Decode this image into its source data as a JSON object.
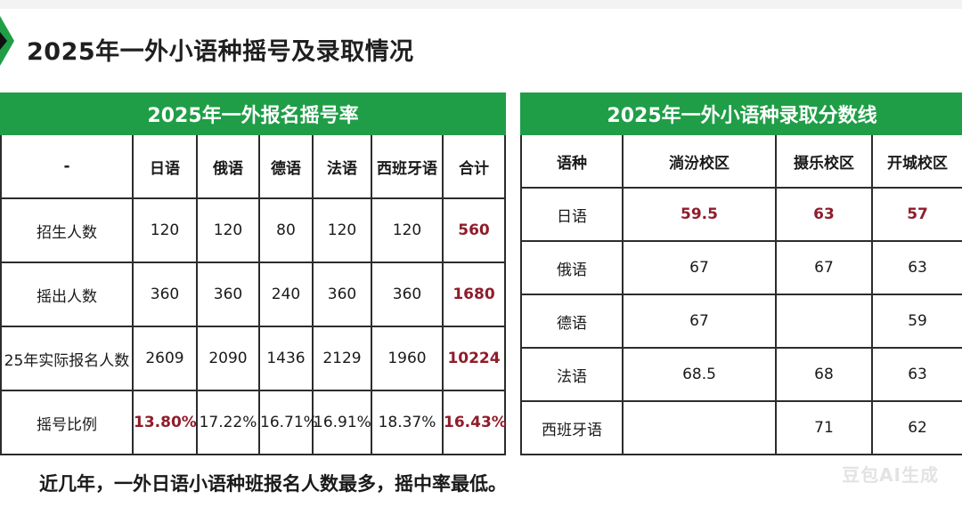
{
  "title": "2025年一外小语种摇号及录取情况",
  "lottery_table": {
    "caption": "2025年一外报名摇号率",
    "columns": [
      "-",
      "日语",
      "俄语",
      "德语",
      "法语",
      "西班牙语",
      "合计"
    ],
    "rows": [
      {
        "label": "招生人数",
        "cells": [
          "120",
          "120",
          "80",
          "120",
          "120",
          "560"
        ]
      },
      {
        "label": "摇出人数",
        "cells": [
          "360",
          "360",
          "240",
          "360",
          "360",
          "1680"
        ]
      },
      {
        "label": "25年实际报名人数",
        "cells": [
          "2609",
          "2090",
          "1436",
          "2129",
          "1960",
          "10224"
        ]
      },
      {
        "label": "摇号比例",
        "cells": [
          "13.80%",
          "17.22%",
          "16.71%",
          "16.91%",
          "18.37%",
          "16.43%"
        ]
      }
    ]
  },
  "score_table": {
    "caption": "2025年一外小语种录取分数线",
    "columns": [
      "语种",
      "淌汾校区",
      "摄乐校区",
      "开城校区"
    ],
    "rows": [
      {
        "label": "日语",
        "cells": [
          "59.5",
          "63",
          "57"
        ]
      },
      {
        "label": "俄语",
        "cells": [
          "67",
          "67",
          "63"
        ]
      },
      {
        "label": "德语",
        "cells": [
          "67",
          "",
          "59"
        ]
      },
      {
        "label": "法语",
        "cells": [
          "68.5",
          "68",
          "63"
        ]
      },
      {
        "label": "西班牙语",
        "cells": [
          "",
          "71",
          "62"
        ]
      }
    ]
  },
  "footnote": "近几年，一外日语小语种班报名人数最多，摇中率最低。",
  "watermark": "豆包AI生成",
  "colors": {
    "banner": "#1f9e47",
    "highlight": "#8f1d2b"
  }
}
